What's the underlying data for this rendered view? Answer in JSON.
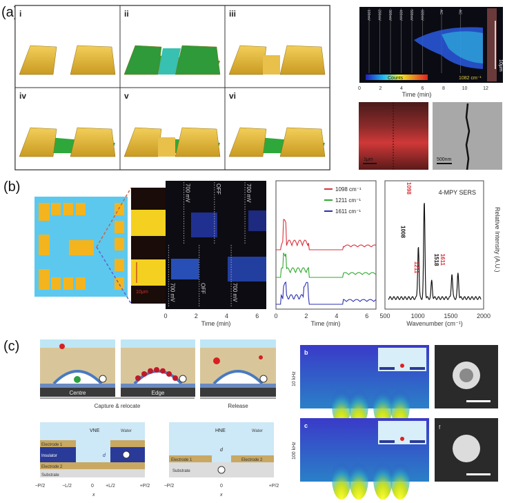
{
  "panel_a": {
    "label": "(a)",
    "steps": [
      "i",
      "ii",
      "iii",
      "iv",
      "v",
      "vi"
    ],
    "heatmap": {
      "time_marks": [
        "100mV",
        "200mV",
        "300mV",
        "400mV",
        "500mV",
        "600mV",
        "AC",
        "AC"
      ],
      "colorbar_label": "Counts",
      "wavenumber": "1082 cm⁻¹",
      "scale": "10μm",
      "xticks": [
        "0",
        "2",
        "4",
        "6",
        "8",
        "10",
        "12"
      ],
      "xlabel": "Time (min)"
    },
    "optical_scale": "1μm",
    "sem_scale": "500nm"
  },
  "panel_b": {
    "label": "(b)",
    "zoom_scale": "10μm",
    "heatmap": {
      "top_marks": [
        "700 mV",
        "OFF",
        "700 mV"
      ],
      "bottom_marks": [
        "700 mV",
        "OFF",
        "700 mV"
      ],
      "xticks": [
        "0",
        "2",
        "4",
        "6"
      ],
      "xlabel": "Time (min)"
    },
    "traces": {
      "legend": [
        "1098 cm⁻¹",
        "1211 cm⁻¹",
        "1611 cm⁻¹"
      ],
      "colors": [
        "#d9303a",
        "#2ea82e",
        "#2a2fb0"
      ],
      "xticks": [
        "0",
        "2",
        "4",
        "6"
      ],
      "xlabel": "Time (min)"
    },
    "spectrum": {
      "title": "4-MPY SERS",
      "peaks": [
        {
          "label": "1008",
          "x": 1008,
          "h": 0.55,
          "color": "#111"
        },
        {
          "label": "1098",
          "x": 1098,
          "h": 1.0,
          "color": "#d9303a"
        },
        {
          "label": "1211",
          "x": 1211,
          "h": 0.18,
          "color": "#d9303a"
        },
        {
          "label": "1518",
          "x": 1518,
          "h": 0.26,
          "color": "#111"
        },
        {
          "label": "1611",
          "x": 1611,
          "h": 0.26,
          "color": "#d9303a"
        }
      ],
      "xticks": [
        "500",
        "1000",
        "1500",
        "2000"
      ],
      "xlabel": "Wavenumber (cm⁻¹)",
      "ylabel": "Relative Intensity (A.U.)"
    }
  },
  "panel_c": {
    "label": "(c)",
    "scenes": [
      "Centre",
      "Edge",
      "Release"
    ],
    "scene_captions": [
      "Capture & relocate",
      "Release"
    ],
    "vne": {
      "title": "VNE",
      "water": "Water",
      "electrode1": "Electrode 1",
      "insulator": "Insulator",
      "electrode2": "Electrode 2",
      "substrate": "Substrate",
      "gap": "d",
      "xticks": [
        "−P/2",
        "−L/2",
        "0",
        "+L/2",
        "+P/2"
      ],
      "xlabel": "x"
    },
    "hne": {
      "title": "HNE",
      "water": "Water",
      "electrode1": "Electrode 1",
      "electrode2": "Electrode 2",
      "substrate": "Substrate",
      "gap": "d",
      "xticks": [
        "−P/2",
        "0",
        "+P/2"
      ],
      "xlabel": "x"
    },
    "sims": [
      {
        "tag": "b",
        "freq": "10 kHz"
      },
      {
        "tag": "c",
        "freq": "100 kHz"
      }
    ],
    "micrograph_tags": [
      "",
      "f"
    ]
  }
}
